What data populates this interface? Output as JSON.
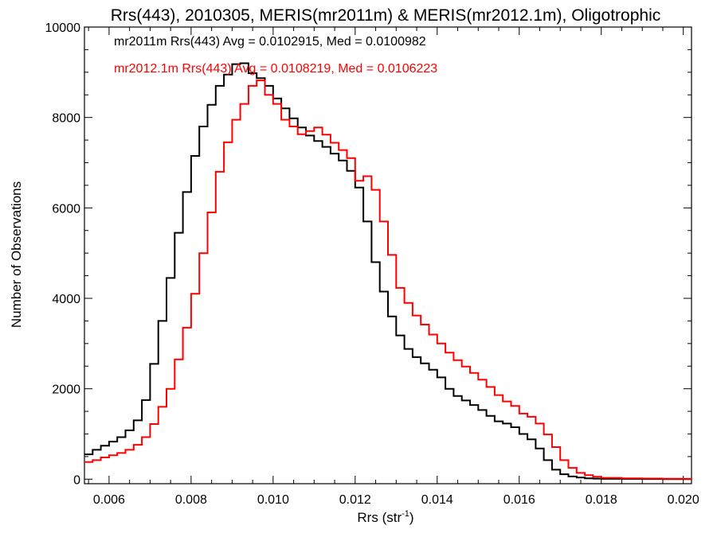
{
  "chart_data": {
    "type": "line",
    "title": "Rrs(443), 2010305, MERIS(mr2011m) & MERIS(mr2012.1m), Oligotrophic",
    "xlabel": "Rrs (str",
    "xlabel_sup": "-1",
    "xlabel_tail": ")",
    "ylabel": "Number of Observations",
    "xlim": [
      0.0054,
      0.0202
    ],
    "ylim": [
      -100,
      10000
    ],
    "x_ticks": [
      0.006,
      0.008,
      0.01,
      0.012,
      0.014,
      0.016,
      0.018,
      0.02
    ],
    "x_tick_labels": [
      "0.006",
      "0.008",
      "0.010",
      "0.012",
      "0.014",
      "0.016",
      "0.018",
      "0.020"
    ],
    "y_ticks": [
      0,
      2000,
      4000,
      6000,
      8000,
      10000
    ],
    "y_tick_labels": [
      "0",
      "2000",
      "4000",
      "6000",
      "8000",
      "10000"
    ],
    "legend_placement": "top-left",
    "series": [
      {
        "name": "mr2011m Rrs(443) Avg = 0.0102915, Med = 0.0100982",
        "color": "#000000",
        "x": [
          0.0054,
          0.0056,
          0.0058,
          0.006,
          0.0062,
          0.0064,
          0.0066,
          0.0068,
          0.007,
          0.0072,
          0.0074,
          0.0076,
          0.0078,
          0.008,
          0.0082,
          0.0084,
          0.0086,
          0.0088,
          0.009,
          0.0092,
          0.0094,
          0.0096,
          0.0098,
          0.01,
          0.0102,
          0.0104,
          0.0106,
          0.0108,
          0.011,
          0.0112,
          0.0114,
          0.0116,
          0.0118,
          0.012,
          0.0122,
          0.0124,
          0.0126,
          0.0128,
          0.013,
          0.0132,
          0.0134,
          0.0136,
          0.0138,
          0.014,
          0.0142,
          0.0144,
          0.0146,
          0.0148,
          0.015,
          0.0152,
          0.0154,
          0.0156,
          0.0158,
          0.016,
          0.0162,
          0.0164,
          0.0166,
          0.0168,
          0.017,
          0.0172,
          0.0174,
          0.0176,
          0.0178,
          0.018,
          0.0185,
          0.019,
          0.0195,
          0.02,
          0.0202
        ],
        "y": [
          550,
          650,
          740,
          830,
          930,
          1080,
          1300,
          1750,
          2550,
          3500,
          4450,
          5450,
          6350,
          7150,
          7800,
          8280,
          8700,
          8950,
          9180,
          9200,
          8980,
          8870,
          8700,
          8420,
          8200,
          7980,
          7780,
          7600,
          7480,
          7350,
          7200,
          7050,
          6820,
          6450,
          5700,
          4800,
          4150,
          3600,
          3180,
          2880,
          2700,
          2560,
          2420,
          2250,
          2000,
          1840,
          1740,
          1640,
          1530,
          1400,
          1280,
          1230,
          1150,
          1000,
          880,
          680,
          420,
          210,
          110,
          60,
          35,
          20,
          12,
          8,
          5,
          3,
          2,
          1,
          1
        ]
      },
      {
        "name": "mr2012.1m Rrs(443) Avg = 0.0108219, Med = 0.0106223",
        "color": "#ff0000",
        "x": [
          0.0054,
          0.0056,
          0.0058,
          0.006,
          0.0062,
          0.0064,
          0.0066,
          0.0068,
          0.007,
          0.0072,
          0.0074,
          0.0076,
          0.0078,
          0.008,
          0.0082,
          0.0084,
          0.0086,
          0.0088,
          0.009,
          0.0092,
          0.0094,
          0.0096,
          0.0098,
          0.01,
          0.0102,
          0.0104,
          0.0106,
          0.0108,
          0.011,
          0.0112,
          0.0114,
          0.0116,
          0.0118,
          0.012,
          0.0122,
          0.0124,
          0.0126,
          0.0128,
          0.013,
          0.0132,
          0.0134,
          0.0136,
          0.0138,
          0.014,
          0.0142,
          0.0144,
          0.0146,
          0.0148,
          0.015,
          0.0152,
          0.0154,
          0.0156,
          0.0158,
          0.016,
          0.0162,
          0.0164,
          0.0166,
          0.0168,
          0.017,
          0.0172,
          0.0174,
          0.0176,
          0.0178,
          0.018,
          0.0185,
          0.019,
          0.0195,
          0.02,
          0.0202
        ],
        "y": [
          380,
          420,
          480,
          530,
          580,
          650,
          760,
          930,
          1220,
          1600,
          2000,
          2650,
          3350,
          4100,
          5000,
          5900,
          6800,
          7450,
          7950,
          8300,
          8700,
          8820,
          8500,
          8300,
          7950,
          7800,
          7630,
          7700,
          7780,
          7620,
          7440,
          7280,
          7100,
          6600,
          6700,
          6400,
          5700,
          4960,
          4230,
          3900,
          3620,
          3420,
          3200,
          3000,
          2800,
          2630,
          2490,
          2350,
          2200,
          2040,
          1860,
          1720,
          1620,
          1450,
          1380,
          1230,
          990,
          710,
          420,
          250,
          140,
          90,
          55,
          30,
          20,
          15,
          10,
          8,
          5
        ]
      }
    ]
  }
}
